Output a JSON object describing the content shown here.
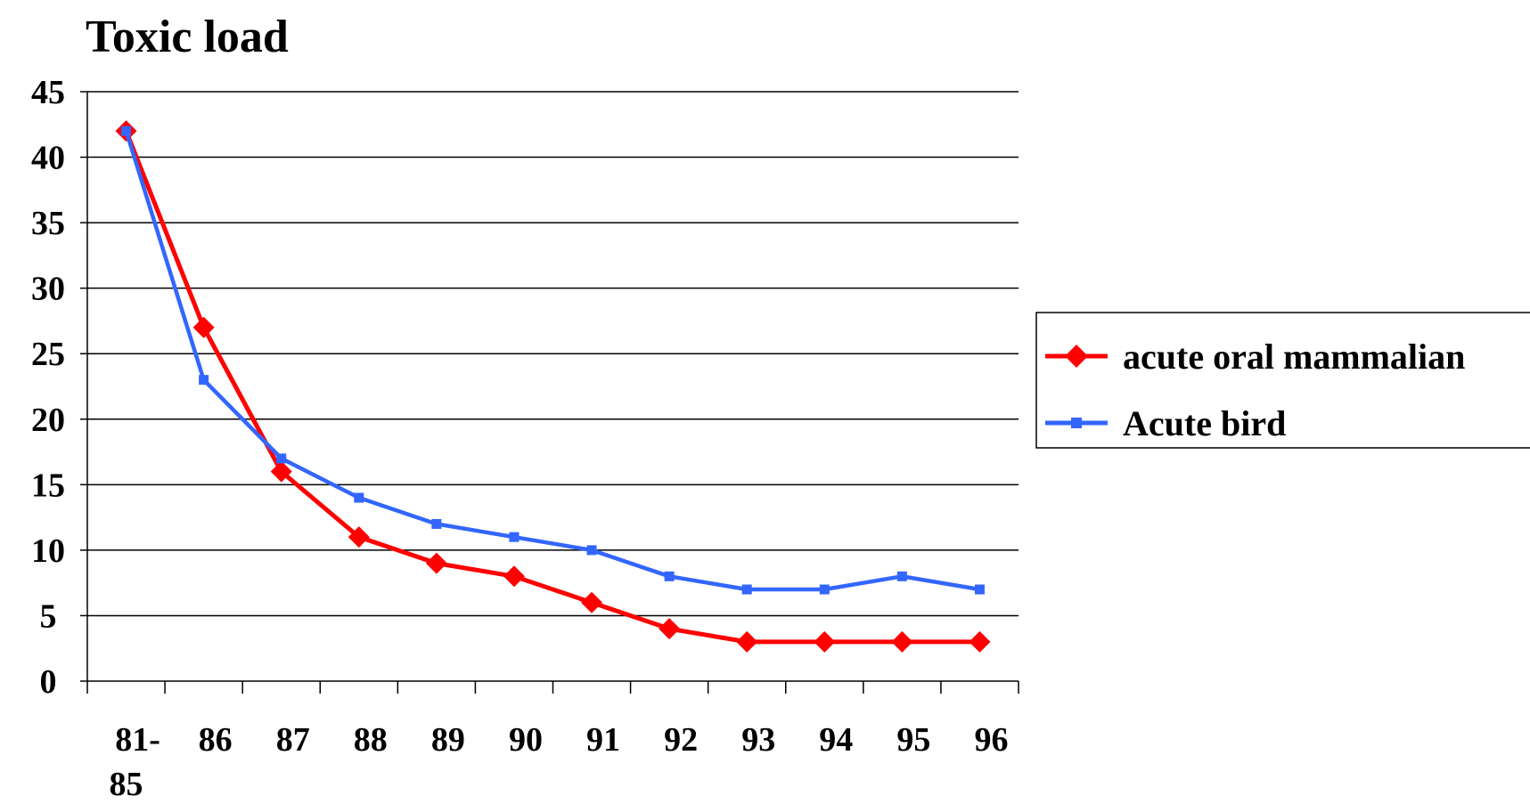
{
  "chart_data": {
    "type": "line",
    "title": "Toxic load",
    "xlabel": "",
    "ylabel": "",
    "categories": [
      "81-85",
      "86",
      "87",
      "88",
      "89",
      "90",
      "91",
      "92",
      "93",
      "94",
      "95",
      "96"
    ],
    "ylim": [
      0,
      45
    ],
    "yticks": [
      0,
      5,
      10,
      15,
      20,
      25,
      30,
      35,
      40,
      45
    ],
    "grid": true,
    "legend_position": "right",
    "series": [
      {
        "name": "acute oral mammalian",
        "color": "#ff0000",
        "marker": "diamond",
        "values": [
          42,
          27,
          16,
          11,
          9,
          8,
          6,
          4,
          3,
          3,
          3,
          3
        ]
      },
      {
        "name": "Acute bird",
        "color": "#3366ff",
        "marker": "square",
        "values": [
          42,
          23,
          17,
          14,
          12,
          11,
          10,
          8,
          7,
          7,
          8,
          7
        ]
      }
    ]
  }
}
